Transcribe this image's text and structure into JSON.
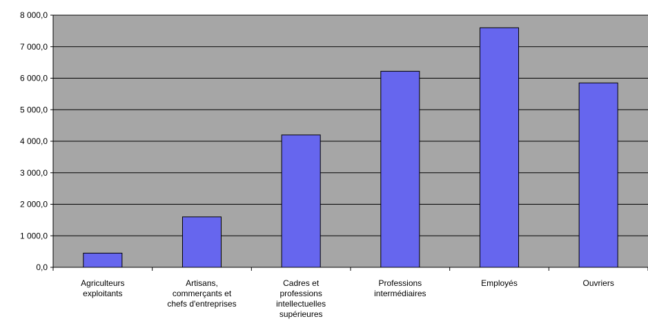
{
  "chart_data": {
    "type": "bar",
    "categories": [
      [
        "Agriculteurs",
        "exploitants"
      ],
      [
        "Artisans,",
        "commerçants et",
        "chefs d'entreprises"
      ],
      [
        "Cadres et",
        "professions",
        "intellectuelles",
        "supérieures"
      ],
      [
        "Professions",
        "intermédiaires"
      ],
      [
        "Employés"
      ],
      [
        "Ouvriers"
      ]
    ],
    "values": [
      450,
      1600,
      4200,
      6220,
      7600,
      5850
    ],
    "ylim": [
      0,
      8000
    ],
    "yticks": [
      0,
      1000,
      2000,
      3000,
      4000,
      5000,
      6000,
      7000,
      8000
    ],
    "ytick_labels": [
      "0,0",
      "1 000,0",
      "2 000,0",
      "3 000,0",
      "4 000,0",
      "5 000,0",
      "6 000,0",
      "7 000,0",
      "8 000,0"
    ],
    "grid": true,
    "legend": "none",
    "colors": {
      "plot_background": "#a6a6a6",
      "bar_fill": "#6666ee",
      "bar_stroke": "#000000",
      "gridline": "#000000"
    }
  }
}
